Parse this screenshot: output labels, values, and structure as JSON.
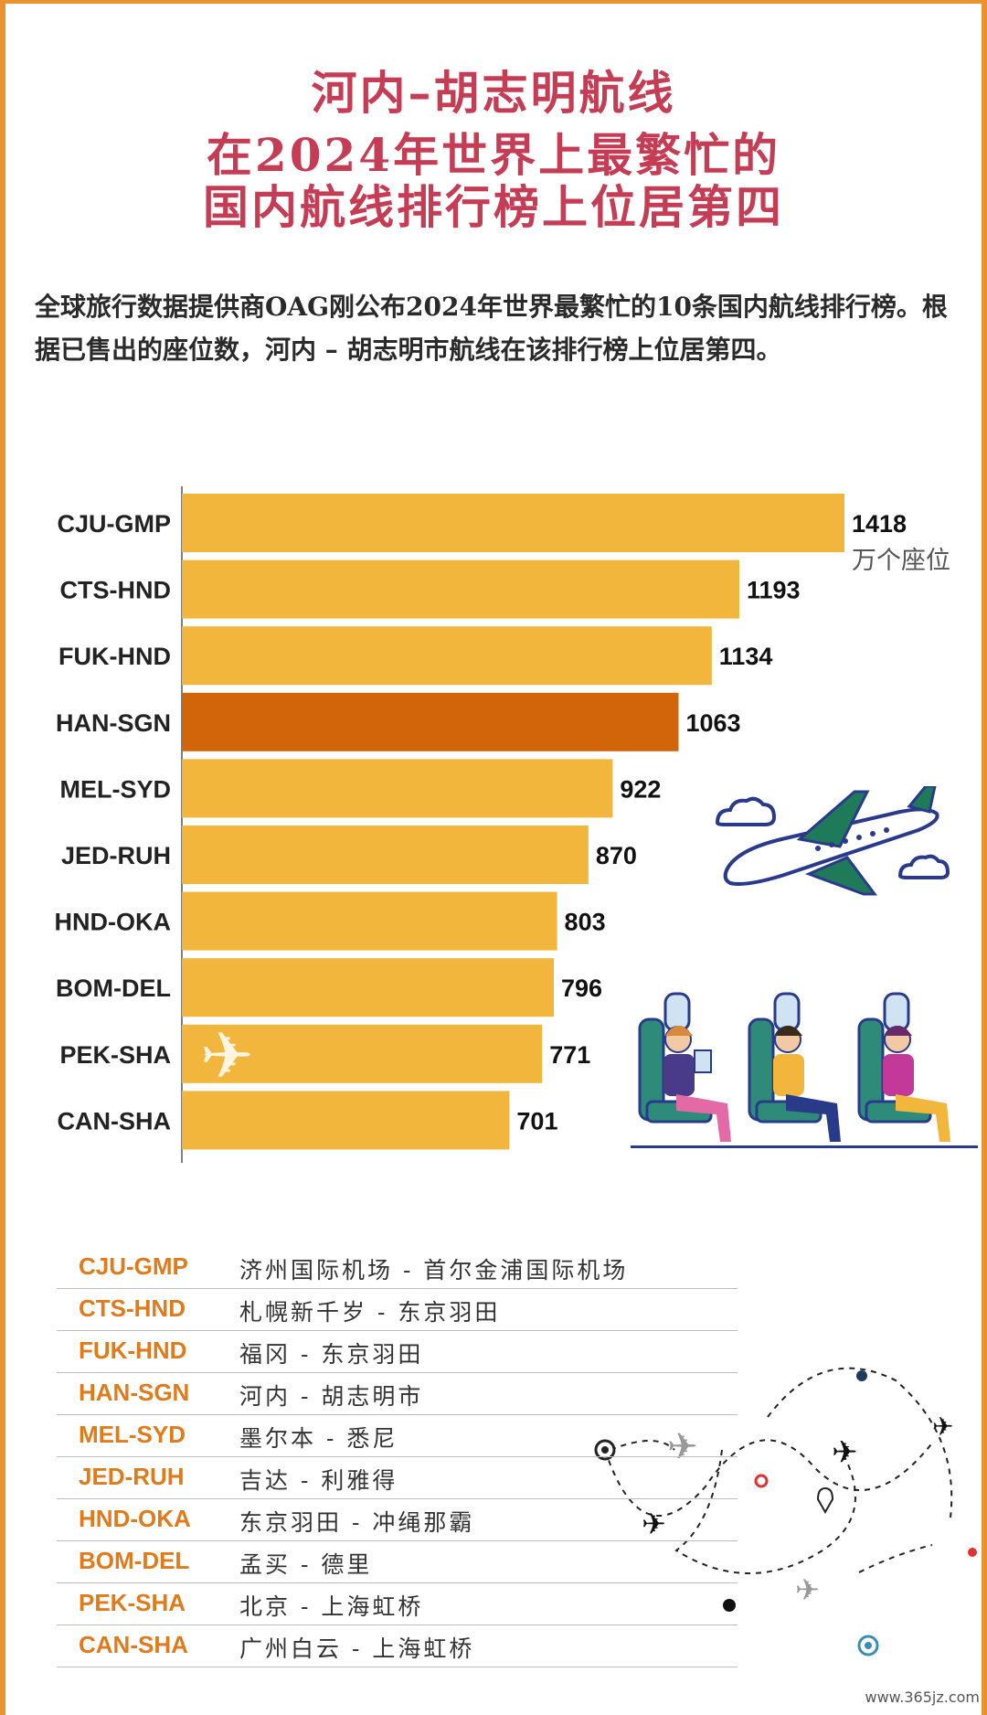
{
  "title_lines": [
    "河内–胡志明航线",
    "在2024年世界上最繁忙的",
    "国内航线排行榜上位居第四"
  ],
  "intro": "全球旅行数据提供商OAG刚公布2024年世界最繁忙的10条国内航线排行榜。根据已售出的座位数，河内 – 胡志明市航线在该排行榜上位居第四。",
  "chart_data": {
    "type": "bar",
    "orientation": "horizontal",
    "categories": [
      "CJU-GMP",
      "CTS-HND",
      "FUK-HND",
      "HAN-SGN",
      "MEL-SYD",
      "JED-RUH",
      "HND-OKA",
      "BOM-DEL",
      "PEK-SHA",
      "CAN-SHA"
    ],
    "values": [
      1418,
      1193,
      1134,
      1063,
      922,
      870,
      803,
      796,
      771,
      701
    ],
    "unit_label": "万个座位",
    "highlight": "HAN-SGN",
    "colors": {
      "bar": "#f2b63c",
      "highlight": "#d2650a",
      "label": "#222222"
    }
  },
  "legend": [
    {
      "code": "CJU-GMP",
      "name": "济州国际机场 - 首尔金浦国际机场"
    },
    {
      "code": "CTS-HND",
      "name": "札幌新千岁 - 东京羽田"
    },
    {
      "code": "FUK-HND",
      "name": "福冈 - 东京羽田"
    },
    {
      "code": "HAN-SGN",
      "name": "河内 - 胡志明市"
    },
    {
      "code": "MEL-SYD",
      "name": "墨尔本 - 悉尼"
    },
    {
      "code": "JED-RUH",
      "name": "吉达 - 利雅得"
    },
    {
      "code": "HND-OKA",
      "name": "东京羽田 - 冲绳那霸"
    },
    {
      "code": "BOM-DEL",
      "name": "孟买 - 德里"
    },
    {
      "code": "PEK-SHA",
      "name": "北京 - 上海虹桥"
    },
    {
      "code": "CAN-SHA",
      "name": "广州白云 - 上海虹桥"
    }
  ],
  "watermark": "www.365jz.com",
  "icons": [
    "airplane-icon",
    "cloud-icon",
    "passenger-seats-illustration",
    "flight-route-map-illustration",
    "map-pin-icon"
  ]
}
